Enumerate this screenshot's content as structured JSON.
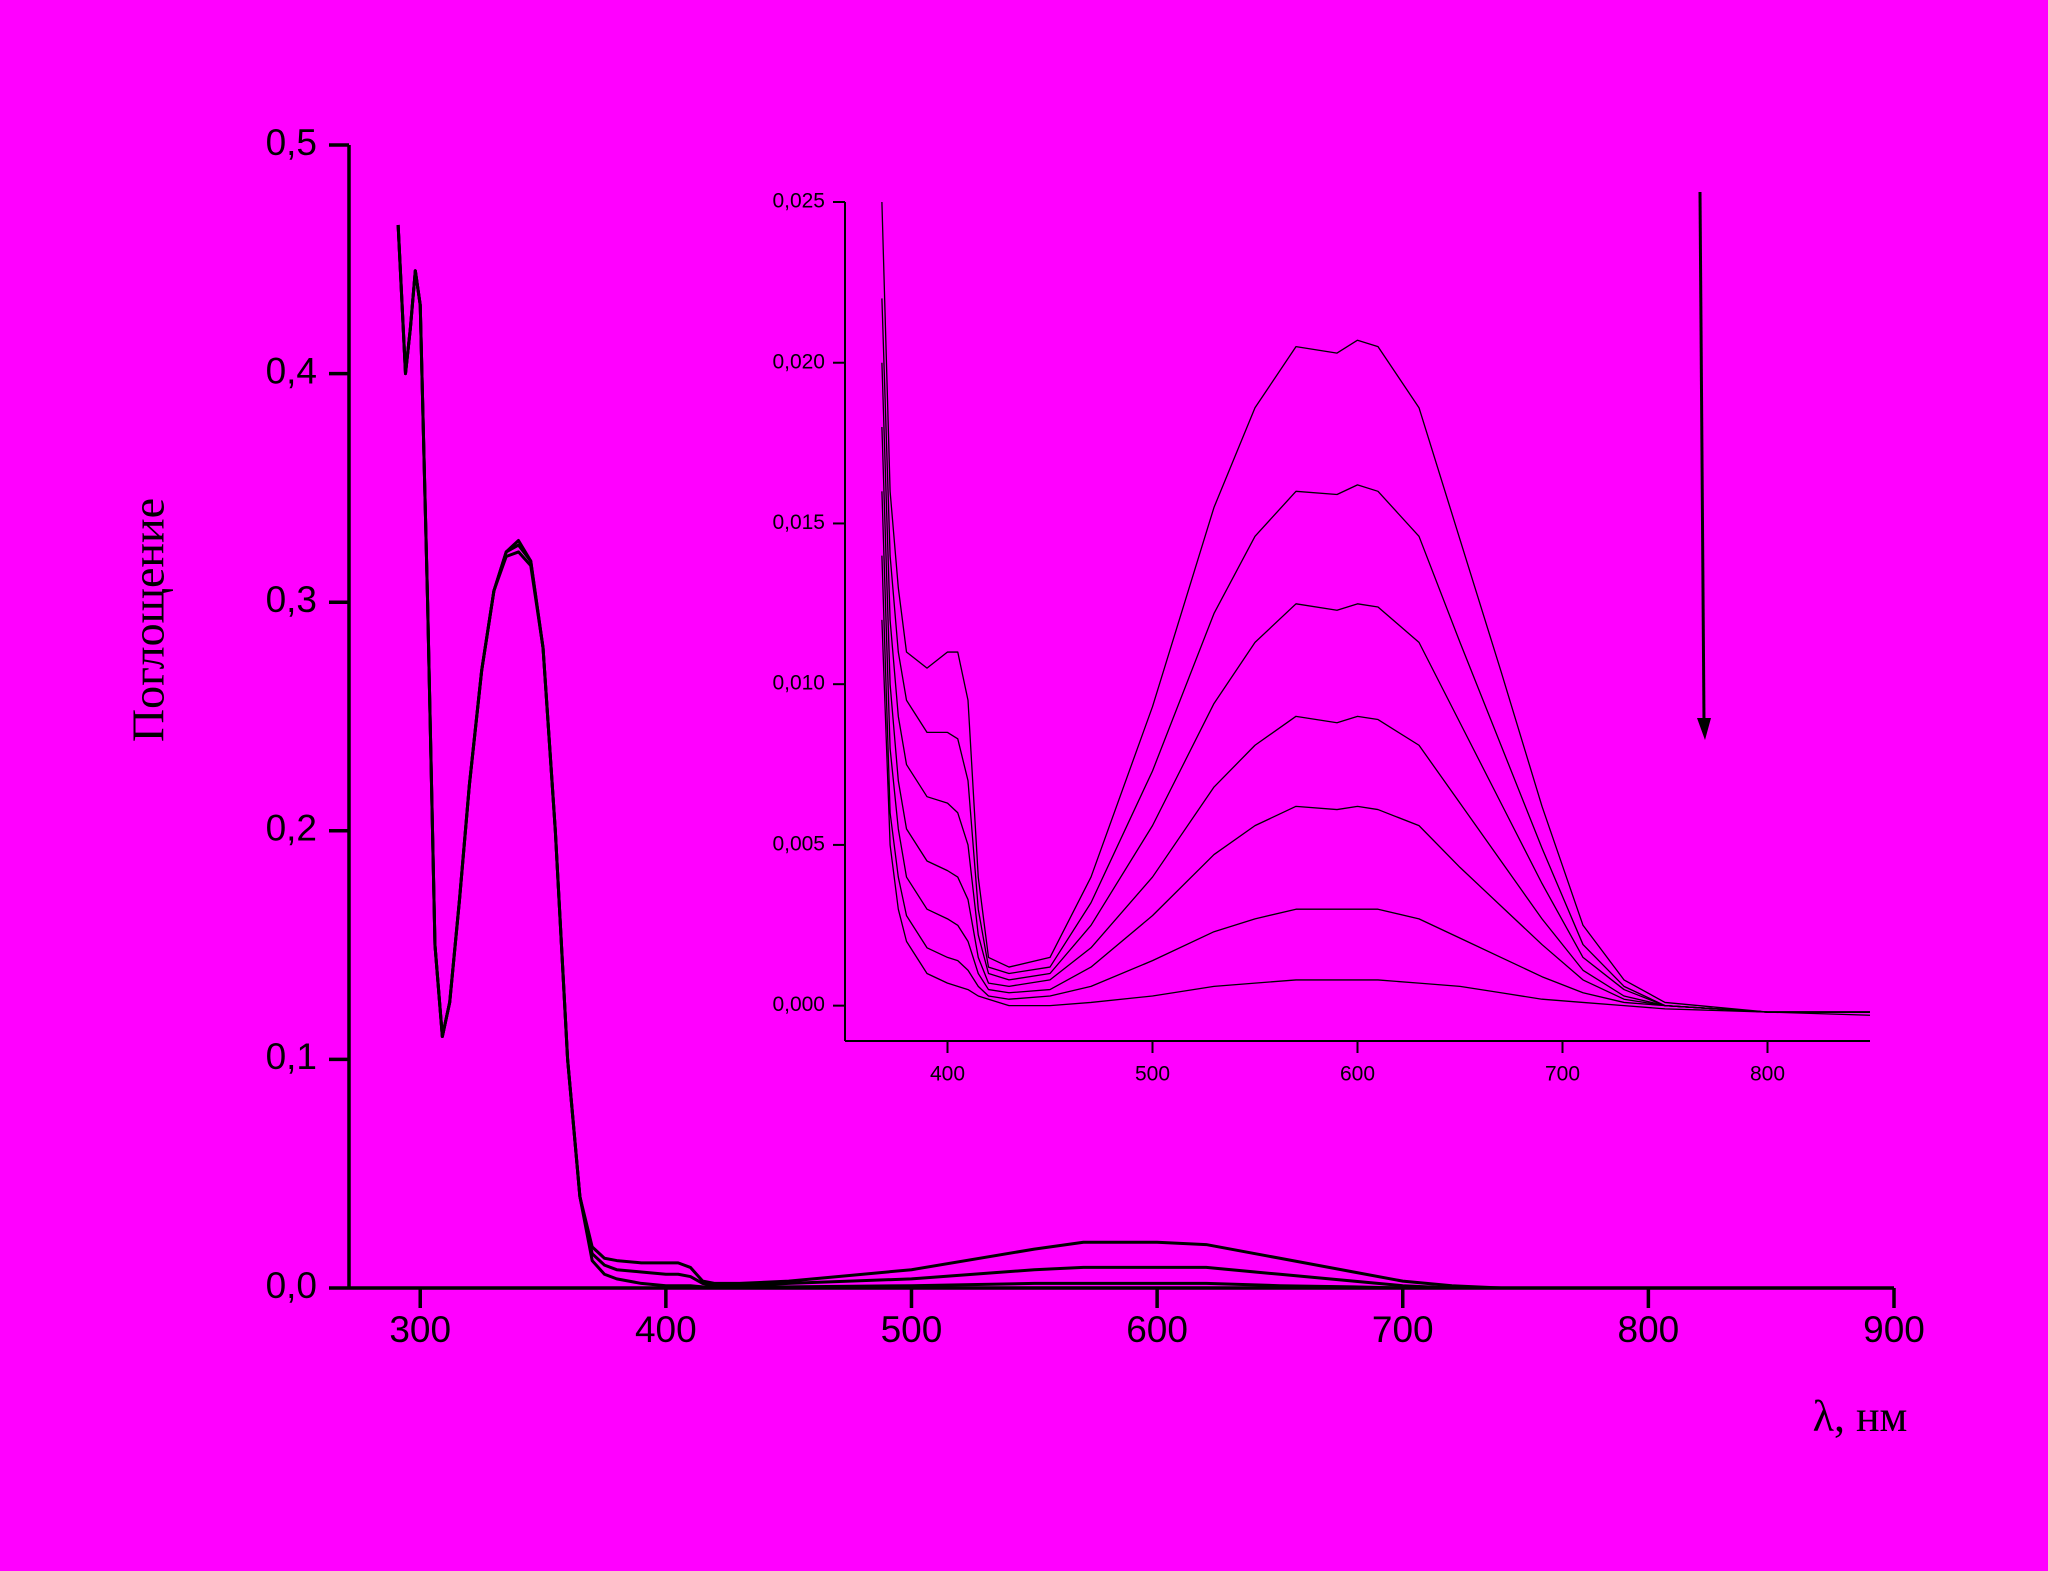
{
  "chart_data": [
    {
      "type": "line",
      "y_label": "Поглощение",
      "x_label": "λ, нм",
      "xlim": [
        271,
        900
      ],
      "ylim": [
        0,
        0.5
      ],
      "xticks": [
        300,
        400,
        500,
        600,
        700,
        800,
        900
      ],
      "yticks": [
        {
          "value": 0,
          "label": "0,0"
        },
        {
          "value": 0.1,
          "label": "0,1"
        },
        {
          "value": 0.2,
          "label": "0,2"
        },
        {
          "value": 0.3,
          "label": "0,3"
        },
        {
          "value": 0.4,
          "label": "0,4"
        },
        {
          "value": 0.5,
          "label": "0,5"
        }
      ],
      "x": [
        291,
        294,
        296,
        298,
        300,
        303,
        306,
        309,
        312,
        316,
        320,
        325,
        330,
        335,
        340,
        345,
        350,
        355,
        360,
        365,
        370,
        375,
        380,
        390,
        400,
        405,
        410,
        415,
        420,
        430,
        450,
        500,
        550,
        570,
        600,
        620,
        650,
        680,
        700,
        720,
        740
      ],
      "series": [
        {
          "color": "#000000",
          "values": [
            0.465,
            0.4,
            0.42,
            0.445,
            0.43,
            0.3,
            0.15,
            0.11,
            0.125,
            0.17,
            0.22,
            0.27,
            0.305,
            0.322,
            0.327,
            0.318,
            0.28,
            0.2,
            0.1,
            0.04,
            0.018,
            0.013,
            0.012,
            0.011,
            0.011,
            0.011,
            0.009,
            0.003,
            0.002,
            0.002,
            0.003,
            0.008,
            0.017,
            0.02,
            0.02,
            0.019,
            0.013,
            0.007,
            0.003,
            0.001,
            0
          ]
        },
        {
          "color": "#000000",
          "values": [
            0.465,
            0.4,
            0.42,
            0.445,
            0.43,
            0.3,
            0.15,
            0.11,
            0.125,
            0.17,
            0.22,
            0.27,
            0.305,
            0.322,
            0.325,
            0.318,
            0.28,
            0.2,
            0.1,
            0.04,
            0.015,
            0.01,
            0.008,
            0.007,
            0.006,
            0.006,
            0.005,
            0.002,
            0.001,
            0.001,
            0.002,
            0.004,
            0.008,
            0.009,
            0.009,
            0.009,
            0.006,
            0.003,
            0.001,
            0,
            0
          ]
        },
        {
          "color": "#000000",
          "values": [
            0.465,
            0.4,
            0.42,
            0.445,
            0.43,
            0.3,
            0.15,
            0.11,
            0.125,
            0.17,
            0.22,
            0.27,
            0.305,
            0.32,
            0.322,
            0.316,
            0.28,
            0.2,
            0.1,
            0.04,
            0.012,
            0.006,
            0.004,
            0.002,
            0.001,
            0.001,
            0.001,
            0.0005,
            0.0005,
            0.0005,
            0.0005,
            0.001,
            0.002,
            0.002,
            0.002,
            0.002,
            0.001,
            0.0005,
            0,
            0,
            0
          ]
        }
      ]
    },
    {
      "type": "line",
      "xlim": [
        350,
        850
      ],
      "ylim": [
        -0.0011,
        0.025
      ],
      "xticks": [
        400,
        500,
        600,
        700,
        800
      ],
      "yticks": [
        {
          "value": 0,
          "label": "0,000"
        },
        {
          "value": 0.005,
          "label": "0,005"
        },
        {
          "value": 0.01,
          "label": "0,010"
        },
        {
          "value": 0.015,
          "label": "0,015"
        },
        {
          "value": 0.02,
          "label": "0,020"
        },
        {
          "value": 0.025,
          "label": "0,025"
        }
      ],
      "x": [
        368,
        372,
        376,
        380,
        390,
        400,
        405,
        410,
        415,
        420,
        430,
        450,
        470,
        500,
        530,
        550,
        570,
        590,
        600,
        610,
        630,
        650,
        670,
        690,
        710,
        730,
        750,
        800,
        850
      ],
      "series": [
        {
          "color": "#000000",
          "values": [
            0.025,
            0.016,
            0.013,
            0.011,
            0.0105,
            0.011,
            0.011,
            0.0095,
            0.004,
            0.0015,
            0.0012,
            0.0015,
            0.004,
            0.0093,
            0.0155,
            0.0186,
            0.0205,
            0.0203,
            0.0207,
            0.0205,
            0.0186,
            0.0145,
            0.0104,
            0.0062,
            0.0025,
            0.0008,
            0.0001,
            -0.0002,
            -0.0002
          ]
        },
        {
          "color": "#000000",
          "values": [
            0.022,
            0.014,
            0.011,
            0.0095,
            0.0085,
            0.0085,
            0.0083,
            0.007,
            0.003,
            0.0012,
            0.001,
            0.0012,
            0.0032,
            0.0073,
            0.0122,
            0.0146,
            0.016,
            0.0159,
            0.0162,
            0.016,
            0.0146,
            0.0113,
            0.0081,
            0.0049,
            0.0019,
            0.0006,
            0,
            -0.0002,
            -0.0002
          ]
        },
        {
          "color": "#000000",
          "values": [
            0.02,
            0.012,
            0.009,
            0.0075,
            0.0065,
            0.0063,
            0.006,
            0.005,
            0.0022,
            0.001,
            0.0008,
            0.001,
            0.0025,
            0.0056,
            0.0094,
            0.0113,
            0.0125,
            0.0123,
            0.0125,
            0.0124,
            0.0113,
            0.0088,
            0.0063,
            0.0038,
            0.0015,
            0.0005,
            0,
            -0.0002,
            -0.0003
          ]
        },
        {
          "color": "#000000",
          "values": [
            0.018,
            0.01,
            0.007,
            0.0055,
            0.0045,
            0.0042,
            0.004,
            0.0033,
            0.0015,
            0.0007,
            0.0006,
            0.0008,
            0.0018,
            0.004,
            0.0068,
            0.0081,
            0.009,
            0.0088,
            0.009,
            0.0089,
            0.0081,
            0.0063,
            0.0045,
            0.0027,
            0.0011,
            0.0003,
            0,
            -0.0002,
            -0.0002
          ]
        },
        {
          "color": "#000000",
          "values": [
            0.016,
            0.008,
            0.0055,
            0.004,
            0.003,
            0.0027,
            0.0025,
            0.002,
            0.001,
            0.0005,
            0.0004,
            0.0005,
            0.0012,
            0.0028,
            0.0047,
            0.0056,
            0.0062,
            0.0061,
            0.0062,
            0.0061,
            0.0056,
            0.0043,
            0.0031,
            0.0019,
            0.0008,
            0.0002,
            0,
            -0.0002,
            -0.0002
          ]
        },
        {
          "color": "#000000",
          "values": [
            0.014,
            0.006,
            0.004,
            0.0028,
            0.0018,
            0.0015,
            0.0014,
            0.0011,
            0.0006,
            0.0003,
            0.0002,
            0.0003,
            0.0006,
            0.0014,
            0.0023,
            0.0027,
            0.003,
            0.003,
            0.003,
            0.003,
            0.0027,
            0.0021,
            0.0015,
            0.0009,
            0.0004,
            0.0001,
            0,
            -0.0002,
            -0.0002
          ]
        },
        {
          "color": "#000000",
          "values": [
            0.012,
            0.005,
            0.003,
            0.002,
            0.001,
            0.0007,
            0.0006,
            0.0005,
            0.0003,
            0.0002,
            0,
            0,
            0.0001,
            0.0003,
            0.0006,
            0.0007,
            0.0008,
            0.0008,
            0.0008,
            0.0008,
            0.0007,
            0.0006,
            0.0004,
            0.0002,
            0.0001,
            0,
            -0.0001,
            -0.0002,
            -0.0002
          ]
        }
      ]
    }
  ]
}
